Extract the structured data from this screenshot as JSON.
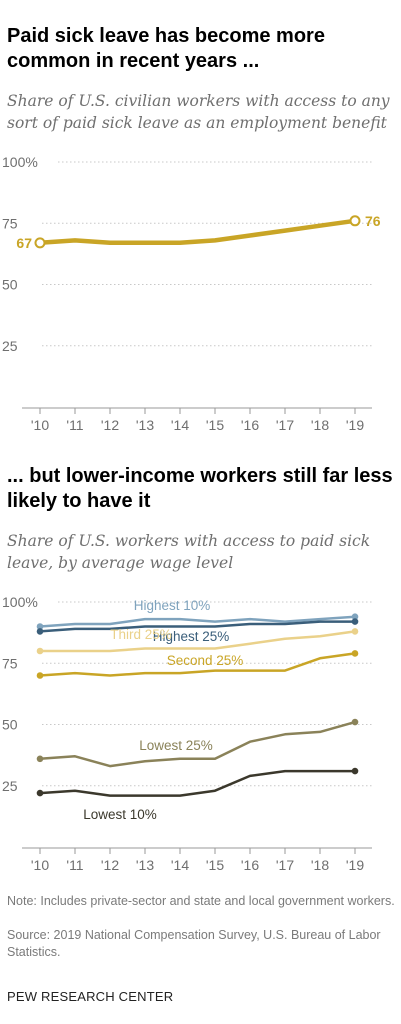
{
  "chart_data": [
    {
      "type": "line",
      "title": "Paid sick leave has become more common in recent years ...",
      "subtitle": "Share of U.S. civilian workers with access to any sort of paid sick leave as an employment benefit",
      "x": [
        "'10",
        "'11",
        "'12",
        "'13",
        "'14",
        "'15",
        "'16",
        "'17",
        "'18",
        "'19"
      ],
      "ylim": [
        0,
        100
      ],
      "yticks": [
        "100%",
        "75",
        "50",
        "25"
      ],
      "series": [
        {
          "name": "",
          "color": "#c9a526",
          "values": [
            67,
            68,
            67,
            67,
            67,
            68,
            70,
            72,
            74,
            76
          ]
        }
      ],
      "labels": {
        "start": "67",
        "end": "76"
      },
      "grid": true
    },
    {
      "type": "line",
      "title": "... but lower-income workers still far less likely to have it",
      "subtitle": "Share of U.S. workers with access to paid sick leave, by average wage level",
      "x": [
        "'10",
        "'11",
        "'12",
        "'13",
        "'14",
        "'15",
        "'16",
        "'17",
        "'18",
        "'19"
      ],
      "ylim": [
        0,
        100
      ],
      "yticks": [
        "100%",
        "75",
        "50",
        "25"
      ],
      "series": [
        {
          "name": "Highest 10%",
          "color": "#7fa3bd",
          "values": [
            90,
            91,
            91,
            93,
            93,
            92,
            93,
            92,
            93,
            94
          ]
        },
        {
          "name": "Highest 25%",
          "color": "#3a5e7a",
          "values": [
            88,
            89,
            89,
            90,
            90,
            90,
            91,
            91,
            92,
            92
          ]
        },
        {
          "name": "Third 25%",
          "color": "#ead18a",
          "values": [
            80,
            80,
            80,
            81,
            81,
            81,
            83,
            85,
            86,
            88
          ]
        },
        {
          "name": "Second 25%",
          "color": "#c9a526",
          "values": [
            70,
            71,
            70,
            71,
            71,
            72,
            72,
            72,
            77,
            79
          ]
        },
        {
          "name": "Lowest 25%",
          "color": "#8a8259",
          "values": [
            36,
            37,
            33,
            35,
            36,
            36,
            43,
            46,
            47,
            51
          ]
        },
        {
          "name": "Lowest 10%",
          "color": "#3b382c",
          "values": [
            22,
            23,
            21,
            21,
            21,
            23,
            29,
            31,
            31,
            31
          ]
        }
      ],
      "grid": true
    }
  ],
  "note": "Note: Includes private-sector and state and local government workers.",
  "source": "Source: 2019 National Compensation Survey, U.S. Bureau of Labor Statistics.",
  "brand": "PEW RESEARCH CENTER"
}
